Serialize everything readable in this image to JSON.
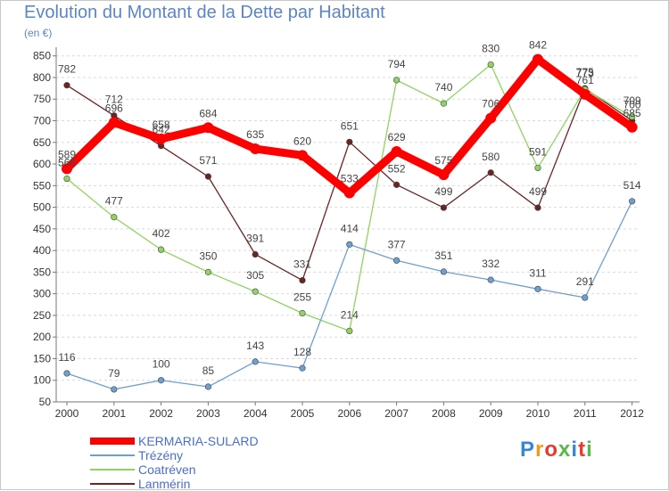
{
  "chart_data": {
    "type": "line",
    "title": "Evolution du Montant de la Dette par Habitant",
    "subtitle": "(en €)",
    "x": [
      "2000",
      "2001",
      "2002",
      "2003",
      "2004",
      "2005",
      "2006",
      "2007",
      "2008",
      "2009",
      "2010",
      "2011",
      "2012"
    ],
    "yticks": [
      "50",
      "100",
      "150",
      "200",
      "250",
      "300",
      "350",
      "400",
      "450",
      "500",
      "550",
      "600",
      "650",
      "700",
      "750",
      "800",
      "850"
    ],
    "ylim": [
      50,
      870
    ],
    "grid": "horizontal",
    "legend": "bottom-left",
    "series": [
      {
        "name": "KERMARIA-SULARD",
        "color": "#ff0000",
        "values": [
          589,
          696,
          658,
          684,
          635,
          620,
          533,
          629,
          575,
          706,
          842,
          761,
          685
        ]
      },
      {
        "name": "Trézény",
        "color": "#6f9fd0",
        "values": [
          116,
          79,
          100,
          85,
          143,
          128,
          414,
          377,
          351,
          332,
          311,
          291,
          514
        ]
      },
      {
        "name": "Coatréven",
        "color": "#8fd460",
        "values": [
          566,
          477,
          402,
          350,
          305,
          255,
          214,
          794,
          740,
          830,
          591,
          773,
          709
        ]
      },
      {
        "name": "Lanmérin",
        "color": "#6b2424",
        "values": [
          782,
          712,
          642,
          571,
          391,
          331,
          651,
          552,
          499,
          580,
          499,
          775,
          700
        ]
      }
    ],
    "data_labels": [
      [
        "589",
        "696",
        "658",
        "684",
        "635",
        "620",
        "533",
        "629",
        "575",
        "706",
        "842",
        "761",
        "685"
      ],
      [
        "116",
        "79",
        "100",
        "85",
        "143",
        "128",
        "414",
        "377",
        "351",
        "332",
        "311",
        "291",
        "514"
      ],
      [
        "566",
        "477",
        "402",
        "350",
        "305",
        "255",
        "214",
        "794",
        "740",
        "830",
        "591",
        "773",
        "709"
      ],
      [
        "782",
        "712",
        "642",
        "571",
        "391",
        "331",
        "651",
        "552",
        "499",
        "580",
        "499",
        "775",
        "700"
      ]
    ]
  },
  "logo": {
    "text": "Proxiti",
    "colors": [
      "#3a86d4",
      "#f29a1f",
      "#e63b2e",
      "#57b947",
      "#3a86d4",
      "#e63b2e",
      "#57b947"
    ]
  }
}
